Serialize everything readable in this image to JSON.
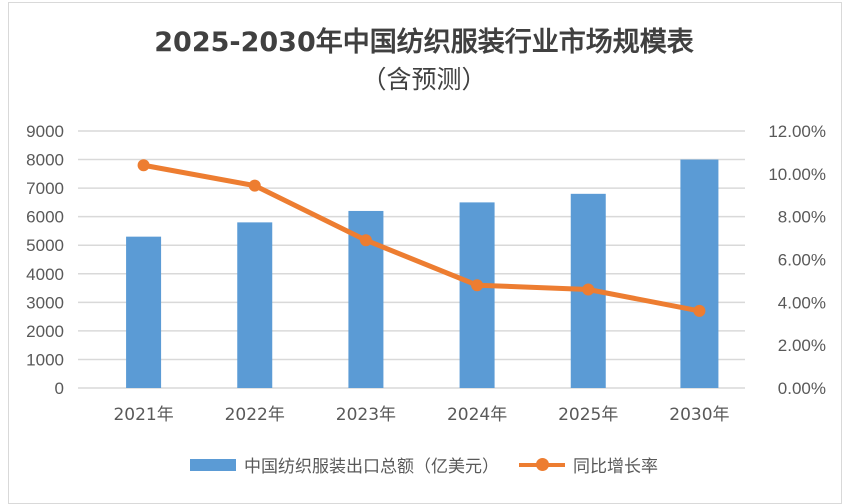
{
  "chart_data": {
    "type": "bar+line",
    "title": "2025-2030年中国纺织服装行业市场规模表",
    "subtitle": "（含预测）",
    "categories": [
      "2021年",
      "2022年",
      "2023年",
      "2024年",
      "2025年",
      "2030年"
    ],
    "series": [
      {
        "name": "中国纺织服装出口总额（亿美元）",
        "type": "bar",
        "axis": "left",
        "color": "#5b9bd5",
        "values": [
          5300,
          5800,
          6200,
          6500,
          6800,
          8000
        ]
      },
      {
        "name": "同比增长率",
        "type": "line",
        "axis": "right",
        "color": "#ed7d31",
        "values": [
          10.4,
          9.45,
          6.9,
          4.8,
          4.6,
          3.6
        ]
      }
    ],
    "left_axis": {
      "range": [
        0,
        9000
      ],
      "ticks": [
        "0",
        "1000",
        "2000",
        "3000",
        "4000",
        "5000",
        "6000",
        "7000",
        "8000",
        "9000"
      ]
    },
    "right_axis": {
      "range": [
        0,
        12
      ],
      "ticks": [
        "0.00%",
        "2.00%",
        "4.00%",
        "6.00%",
        "8.00%",
        "10.00%",
        "12.00%"
      ]
    },
    "grid": true,
    "legend": "bottom"
  }
}
